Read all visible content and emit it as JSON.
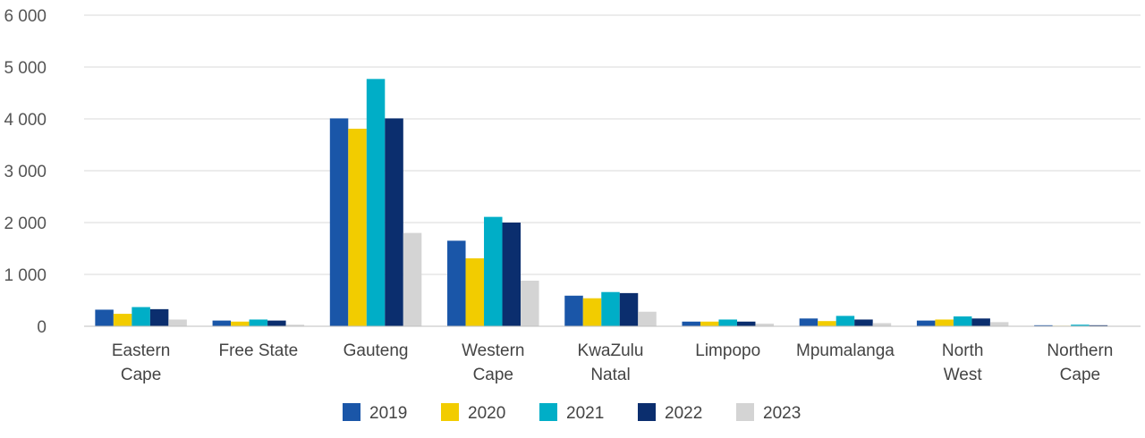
{
  "chart_data": {
    "type": "bar",
    "title": "",
    "xlabel": "",
    "ylabel": "",
    "ylim": [
      0,
      6000
    ],
    "yticks": [
      0,
      1000,
      2000,
      3000,
      4000,
      5000,
      6000
    ],
    "ytick_labels": [
      "0",
      "1 000",
      "2 000",
      "3 000",
      "4 000",
      "5 000",
      "6 000"
    ],
    "grid": true,
    "legend_position": "bottom-center",
    "categories": [
      [
        "Eastern",
        "Cape"
      ],
      [
        "Free State"
      ],
      [
        "Gauteng"
      ],
      [
        "Western",
        "Cape"
      ],
      [
        "KwaZulu",
        "Natal"
      ],
      [
        "Limpopo"
      ],
      [
        "Mpumalanga"
      ],
      [
        "North",
        "West"
      ],
      [
        "Northern",
        "Cape"
      ]
    ],
    "series": [
      {
        "name": "2019",
        "color": "#1a56a8",
        "values": [
          320,
          110,
          4010,
          1650,
          590,
          90,
          150,
          110,
          20
        ]
      },
      {
        "name": "2020",
        "color": "#f2cc00",
        "values": [
          240,
          90,
          3810,
          1310,
          540,
          90,
          100,
          130,
          10
        ]
      },
      {
        "name": "2021",
        "color": "#00aec7",
        "values": [
          370,
          130,
          4770,
          2110,
          660,
          130,
          200,
          190,
          30
        ]
      },
      {
        "name": "2022",
        "color": "#0b2e6e",
        "values": [
          330,
          110,
          4010,
          2000,
          640,
          90,
          130,
          150,
          20
        ]
      },
      {
        "name": "2023",
        "color": "#d4d4d4",
        "values": [
          130,
          30,
          1800,
          880,
          280,
          50,
          60,
          80,
          0
        ]
      }
    ]
  }
}
